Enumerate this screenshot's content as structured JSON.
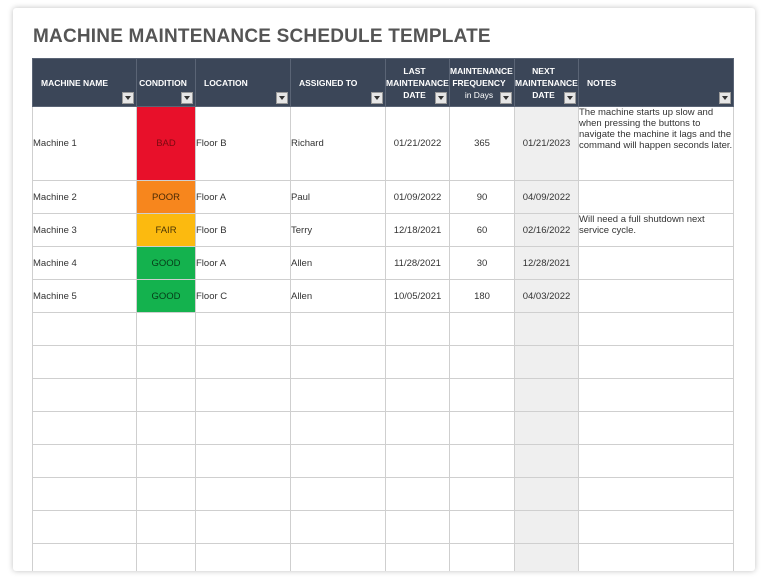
{
  "title": "MACHINE MAINTENANCE SCHEDULE TEMPLATE",
  "colors": {
    "header_bg": "#3b4658",
    "bad": "#e8102a",
    "poor": "#f7861d",
    "fair": "#fcba0f",
    "good": "#14b24e",
    "next_col_bg": "#efefef"
  },
  "headers": {
    "machine_name": "MACHINE NAME",
    "condition": "CONDITION",
    "location": "LOCATION",
    "assigned_to": "ASSIGNED TO",
    "last_date": [
      "LAST",
      "MAINTENANCE",
      "DATE"
    ],
    "frequency": [
      "MAINTENANCE",
      "FREQUENCY",
      "in Days"
    ],
    "next_date": [
      "NEXT",
      "MAINTENANCE",
      "DATE"
    ],
    "notes": "NOTES"
  },
  "rows": [
    {
      "machine": "Machine 1",
      "condition": "BAD",
      "condition_color": "#e8102a",
      "condition_text_color": "#7a0a10",
      "location": "Floor B",
      "assigned": "Richard",
      "last": "01/21/2022",
      "freq": "365",
      "next": "01/21/2023",
      "notes": "The machine starts up slow and when pressing the buttons to navigate the machine it lags and the command will happen seconds later."
    },
    {
      "machine": "Machine 2",
      "condition": "POOR",
      "condition_color": "#f7861d",
      "condition_text_color": "#4a2a05",
      "location": "Floor A",
      "assigned": "Paul",
      "last": "01/09/2022",
      "freq": "90",
      "next": "04/09/2022",
      "notes": ""
    },
    {
      "machine": "Machine 3",
      "condition": "FAIR",
      "condition_color": "#fcba0f",
      "condition_text_color": "#4a3505",
      "location": "Floor B",
      "assigned": "Terry",
      "last": "12/18/2021",
      "freq": "60",
      "next": "02/16/2022",
      "notes": "Will need a full shutdown next service cycle."
    },
    {
      "machine": "Machine 4",
      "condition": "GOOD",
      "condition_color": "#14b24e",
      "condition_text_color": "#063a18",
      "location": "Floor A",
      "assigned": "Allen",
      "last": "11/28/2021",
      "freq": "30",
      "next": "12/28/2021",
      "notes": ""
    },
    {
      "machine": "Machine 5",
      "condition": "GOOD",
      "condition_color": "#14b24e",
      "condition_text_color": "#063a18",
      "location": "Floor C",
      "assigned": "Allen",
      "last": "10/05/2021",
      "freq": "180",
      "next": "04/03/2022",
      "notes": ""
    }
  ],
  "empty_rows": 8
}
